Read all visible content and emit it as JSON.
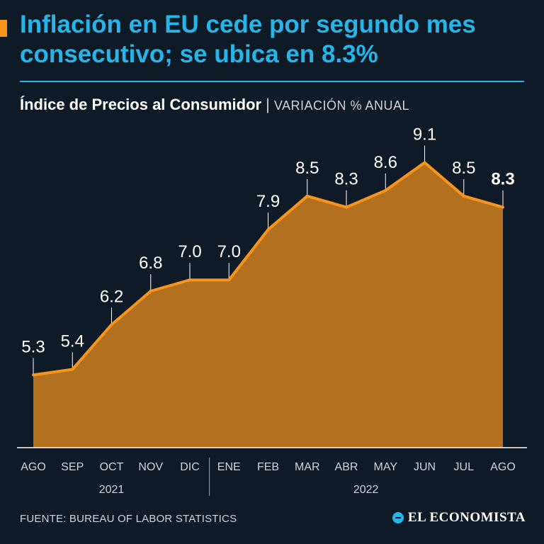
{
  "header": {
    "title": "Inflación en EU cede por segundo mes consecutivo; se ubica en 8.3%",
    "subtitle_main": "Índice de Precios al Consumidor",
    "subtitle_sep": "|",
    "subtitle_unit": "VARIACIÓN % ANUAL"
  },
  "footer": {
    "source": "FUENTE: BUREAU OF LABOR STATISTICS",
    "brand": "EL ECONOMISTA"
  },
  "colors": {
    "background": "#0f1a27",
    "title": "#27b5e8",
    "accent": "#f7941d",
    "area_fill": "#b3701f",
    "line": "#f7941d"
  },
  "chart_data": {
    "type": "area",
    "categories": [
      "AGO",
      "SEP",
      "OCT",
      "NOV",
      "DIC",
      "ENE",
      "FEB",
      "MAR",
      "ABR",
      "MAY",
      "JUN",
      "JUL",
      "AGO"
    ],
    "values": [
      5.3,
      5.4,
      6.2,
      6.8,
      7.0,
      7.0,
      7.9,
      8.5,
      8.3,
      8.6,
      9.1,
      8.5,
      8.3
    ],
    "labels": [
      "5.3",
      "5.4",
      "6.2",
      "6.8",
      "7.0",
      "7.0",
      "7.9",
      "8.5",
      "8.3",
      "8.6",
      "9.1",
      "8.5",
      "8.3"
    ],
    "highlight_last": true,
    "year_groups": [
      {
        "label": "2021",
        "start": 0,
        "end": 4
      },
      {
        "label": "2022",
        "start": 5,
        "end": 12
      }
    ],
    "ylim": [
      4.0,
      9.6
    ],
    "title": "Índice de Precios al Consumidor",
    "xlabel": "",
    "ylabel": "Variación % anual"
  }
}
